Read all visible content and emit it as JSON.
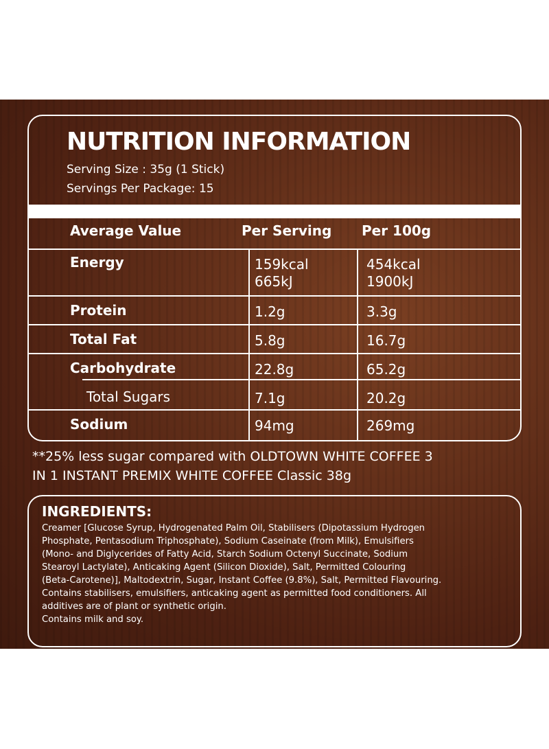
{
  "header": {
    "title": "NUTRITION INFORMATION",
    "serving_size": "Serving Size : 35g (1 Stick)",
    "servings_per_package": "Servings Per Package: 15"
  },
  "table": {
    "columns": [
      "Average Value",
      "Per Serving",
      "Per 100g"
    ],
    "rows": [
      {
        "label": "Energy",
        "per_serving": [
          "159kcal",
          "665kJ"
        ],
        "per_100g": [
          "454kcal",
          "1900kJ"
        ]
      },
      {
        "label": "Protein",
        "per_serving": [
          "1.2g"
        ],
        "per_100g": [
          "3.3g"
        ]
      },
      {
        "label": "Total Fat",
        "per_serving": [
          "5.8g"
        ],
        "per_100g": [
          "16.7g"
        ]
      },
      {
        "label": "Carbohydrate",
        "per_serving": [
          "22.8g"
        ],
        "per_100g": [
          "65.2g"
        ]
      },
      {
        "label": "Total Sugars",
        "per_serving": [
          "7.1g"
        ],
        "per_100g": [
          "20.2g"
        ]
      },
      {
        "label": "Sodium",
        "per_serving": [
          "94mg"
        ],
        "per_100g": [
          "269mg"
        ]
      }
    ]
  },
  "footnote": [
    "**25% less sugar compared with OLDTOWN WHITE COFFEE 3",
    "IN 1 INSTANT PREMIX WHITE COFFEE Classic 38g"
  ],
  "ingredients": {
    "title": "INGREDIENTS:",
    "lines": [
      "Creamer [Glucose Syrup, Hydrogenated Palm Oil, Stabilisers (Dipotassium Hydrogen",
      "Phosphate, Pentasodium Triphosphate), Sodium Caseinate (from Milk), Emulsifiers",
      "(Mono- and Diglycerides of Fatty Acid, Starch Sodium Octenyl Succinate, Sodium",
      "Stearoyl Lactylate), Anticaking Agent (Silicon Dioxide), Salt, Permitted Colouring",
      "(Beta-Carotene)], Maltodextrin, Sugar, Instant Coffee (9.8%), Salt, Permitted Flavouring.",
      "Contains stabilisers, emulsifiers, anticaking agent as permitted food conditioners. All",
      "additives are of plant or synthetic origin.",
      "Contains milk and soy."
    ]
  }
}
